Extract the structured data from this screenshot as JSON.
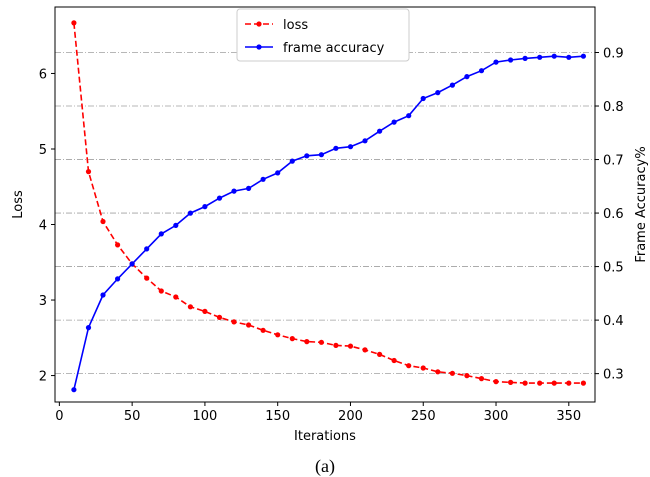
{
  "chart_data": {
    "type": "line",
    "caption": "(a)",
    "xlabel": "Iterations",
    "ylabel_left": "Loss",
    "ylabel_right": "Frame Accuracy%",
    "xlim": [
      -3,
      368
    ],
    "ylim_left": [
      1.65,
      6.88
    ],
    "ylim_right": [
      0.247,
      0.985
    ],
    "xticks": [
      0,
      50,
      100,
      150,
      200,
      250,
      300,
      350
    ],
    "yticks_left": [
      2,
      3,
      4,
      5,
      6
    ],
    "yticks_right": [
      0.3,
      0.4,
      0.5,
      0.6,
      0.7,
      0.8,
      0.9
    ],
    "right_grid": true,
    "legend_position": "upper center",
    "x": [
      10,
      20,
      30,
      40,
      50,
      60,
      70,
      80,
      90,
      100,
      110,
      120,
      130,
      140,
      150,
      160,
      170,
      180,
      190,
      200,
      210,
      220,
      230,
      240,
      250,
      260,
      270,
      280,
      290,
      300,
      310,
      320,
      330,
      340,
      350,
      360
    ],
    "series": [
      {
        "name": "loss",
        "axis": "left",
        "color": "#ff0000",
        "style": "dashed",
        "values": [
          6.67,
          4.7,
          4.04,
          3.73,
          3.48,
          3.29,
          3.12,
          3.04,
          2.91,
          2.85,
          2.77,
          2.71,
          2.67,
          2.6,
          2.54,
          2.49,
          2.45,
          2.44,
          2.4,
          2.39,
          2.34,
          2.28,
          2.2,
          2.13,
          2.1,
          2.05,
          2.03,
          2.0,
          1.96,
          1.92,
          1.91,
          1.9,
          1.9,
          1.9,
          1.9,
          1.9
        ]
      },
      {
        "name": "frame accuracy",
        "axis": "right",
        "color": "#0000ff",
        "style": "solid",
        "values": [
          0.27,
          0.386,
          0.447,
          0.477,
          0.505,
          0.533,
          0.561,
          0.577,
          0.6,
          0.612,
          0.628,
          0.641,
          0.646,
          0.663,
          0.675,
          0.697,
          0.707,
          0.709,
          0.721,
          0.724,
          0.735,
          0.753,
          0.77,
          0.782,
          0.814,
          0.825,
          0.839,
          0.855,
          0.866,
          0.882,
          0.886,
          0.889,
          0.891,
          0.893,
          0.891,
          0.893
        ]
      }
    ]
  }
}
